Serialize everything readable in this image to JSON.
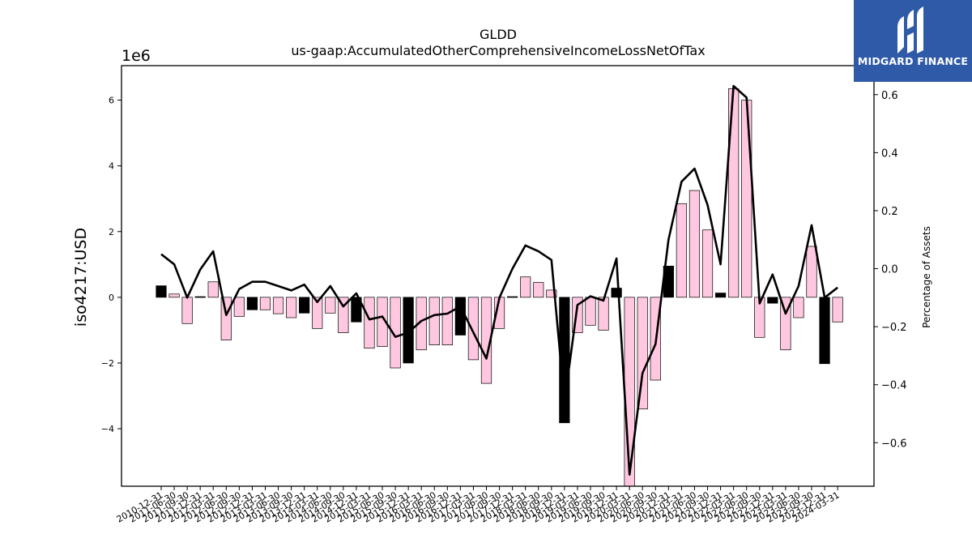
{
  "chart_data": {
    "type": "bar",
    "title": "GLDD",
    "subtitle": "us-gaap:AccumulatedOtherComprehensiveIncomeLossNetOfTax",
    "ylabel": "iso4217:USD",
    "y2label": "Percentage of Assets",
    "y_offset_label": "1e6",
    "ylim": [
      -5.75,
      7.05
    ],
    "y2lim": [
      -0.75,
      0.7
    ],
    "yticks": [
      -4,
      -2,
      0,
      2,
      4,
      6
    ],
    "y2ticks": [
      -0.6,
      -0.4,
      -0.2,
      0.0,
      0.2,
      0.4,
      0.6
    ],
    "categories": [
      "2010-12-31",
      "2011-06-30",
      "2011-09-30",
      "2011-12-31",
      "2012-03-31",
      "2012-06-30",
      "2012-09-30",
      "2012-12-31",
      "2013-03-31",
      "2013-06-30",
      "2013-09-30",
      "2013-12-31",
      "2014-03-31",
      "2014-06-30",
      "2014-09-30",
      "2014-12-31",
      "2015-03-31",
      "2015-06-30",
      "2015-09-30",
      "2015-12-31",
      "2016-03-31",
      "2016-06-30",
      "2016-09-30",
      "2016-12-31",
      "2017-03-31",
      "2017-06-30",
      "2017-09-30",
      "2017-12-31",
      "2018-03-31",
      "2018-06-30",
      "2018-09-30",
      "2018-12-31",
      "2019-03-31",
      "2019-06-30",
      "2019-09-30",
      "2019-12-31",
      "2020-03-31",
      "2020-06-30",
      "2020-09-30",
      "2020-12-31",
      "2021-03-31",
      "2021-06-30",
      "2021-09-30",
      "2021-12-31",
      "2022-03-31",
      "2022-06-30",
      "2022-09-30",
      "2022-12-31",
      "2023-03-31",
      "2023-06-30",
      "2023-09-30",
      "2023-12-31",
      "2024-03-31"
    ],
    "series": [
      {
        "values": [
          0.35,
          0.1,
          -0.8,
          0.02,
          0.47,
          -1.3,
          -0.58,
          -0.38,
          -0.38,
          -0.5,
          -0.62,
          -0.48,
          -0.95,
          -0.48,
          -1.08,
          -0.75,
          -1.55,
          -1.5,
          -2.15,
          -2.0,
          -1.6,
          -1.45,
          -1.45,
          -1.15,
          -1.9,
          -2.62,
          -0.95,
          0.02,
          0.62,
          0.45,
          0.22,
          -3.82,
          -1.08,
          -0.85,
          -1.0,
          0.28,
          -5.75,
          -3.4,
          -2.52,
          0.95,
          2.85,
          3.25,
          2.05,
          0.13,
          6.35,
          6.0,
          -1.22,
          -0.18,
          -1.6,
          -0.62,
          1.55,
          -2.02,
          -0.75
        ],
        "colors": [
          "black",
          "pink",
          "pink",
          "black",
          "pink",
          "pink",
          "pink",
          "black",
          "pink",
          "pink",
          "pink",
          "black",
          "pink",
          "pink",
          "pink",
          "black",
          "pink",
          "pink",
          "pink",
          "black",
          "pink",
          "pink",
          "pink",
          "black",
          "pink",
          "pink",
          "pink",
          "black",
          "pink",
          "pink",
          "pink",
          "black",
          "pink",
          "pink",
          "pink",
          "black",
          "pink",
          "pink",
          "pink",
          "black",
          "pink",
          "pink",
          "pink",
          "black",
          "pink",
          "pink",
          "pink",
          "black",
          "pink",
          "pink",
          "pink",
          "black",
          "pink"
        ]
      },
      {
        "axis": "right",
        "type": "line",
        "values": [
          0.05,
          0.015,
          -0.1,
          -0.003,
          0.06,
          -0.16,
          -0.07,
          -0.045,
          -0.045,
          -0.06,
          -0.075,
          -0.055,
          -0.115,
          -0.06,
          -0.13,
          -0.085,
          -0.175,
          -0.165,
          -0.235,
          -0.22,
          -0.18,
          -0.16,
          -0.155,
          -0.13,
          -0.22,
          -0.31,
          -0.1,
          0.0,
          0.08,
          0.06,
          0.03,
          -0.46,
          -0.125,
          -0.095,
          -0.11,
          0.035,
          -0.71,
          -0.36,
          -0.26,
          0.1,
          0.3,
          0.345,
          0.22,
          0.015,
          0.63,
          0.59,
          -0.12,
          -0.02,
          -0.155,
          -0.06,
          0.15,
          -0.1,
          -0.065
        ]
      }
    ],
    "colors": {
      "pink": "#ffc8e0",
      "black": "#000000",
      "line": "#000000"
    }
  },
  "logo": {
    "text": "MIDGARD FINANCE",
    "background": "#2f5aa8"
  }
}
